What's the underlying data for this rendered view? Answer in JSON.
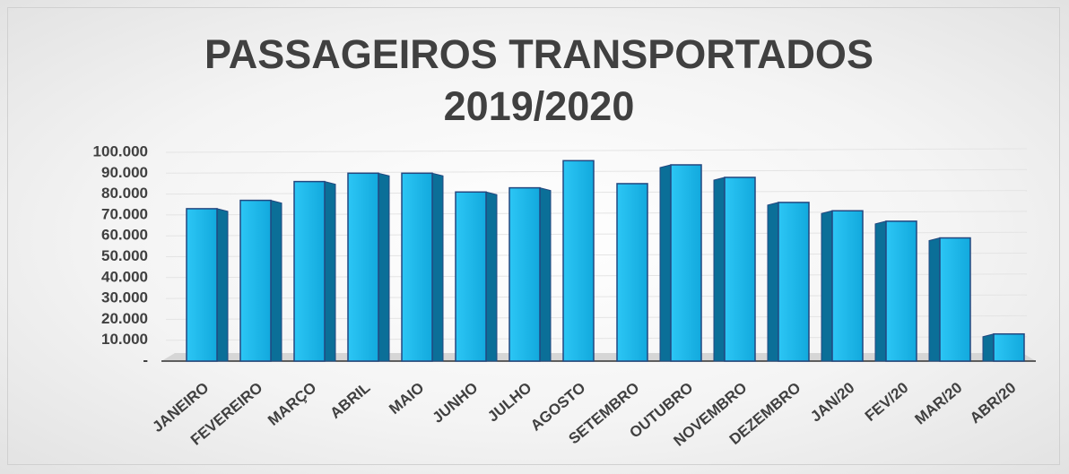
{
  "chart_data": {
    "type": "bar",
    "title": "PASSAGEIROS TRANSPORTADOS 2019/2020",
    "categories": [
      "JANEIRO",
      "FEVEREIRO",
      "MARÇO",
      "ABRIL",
      "MAIO",
      "JUNHO",
      "JULHO",
      "AGOSTO",
      "SETEMBRO",
      "OUTUBRO",
      "NOVEMBRO",
      "DEZEMBRO",
      "JAN/20",
      "FEV/20",
      "MAR/20",
      "ABR/20"
    ],
    "values": [
      73000,
      77000,
      86000,
      90000,
      90000,
      81000,
      83000,
      96000,
      85000,
      94000,
      88000,
      76000,
      72000,
      67000,
      59000,
      13000
    ],
    "color": "#17b6ea",
    "ylim": [
      0,
      100000
    ],
    "yticks": [
      {
        "value": 0,
        "label": "-"
      },
      {
        "value": 10000,
        "label": "10.000"
      },
      {
        "value": 20000,
        "label": "20.000"
      },
      {
        "value": 30000,
        "label": "30.000"
      },
      {
        "value": 40000,
        "label": "40.000"
      },
      {
        "value": 50000,
        "label": "50.000"
      },
      {
        "value": 60000,
        "label": "60.000"
      },
      {
        "value": 70000,
        "label": "70.000"
      },
      {
        "value": 80000,
        "label": "80.000"
      },
      {
        "value": 90000,
        "label": "90.000"
      },
      {
        "value": 100000,
        "label": "100.000"
      }
    ],
    "grid": true
  }
}
